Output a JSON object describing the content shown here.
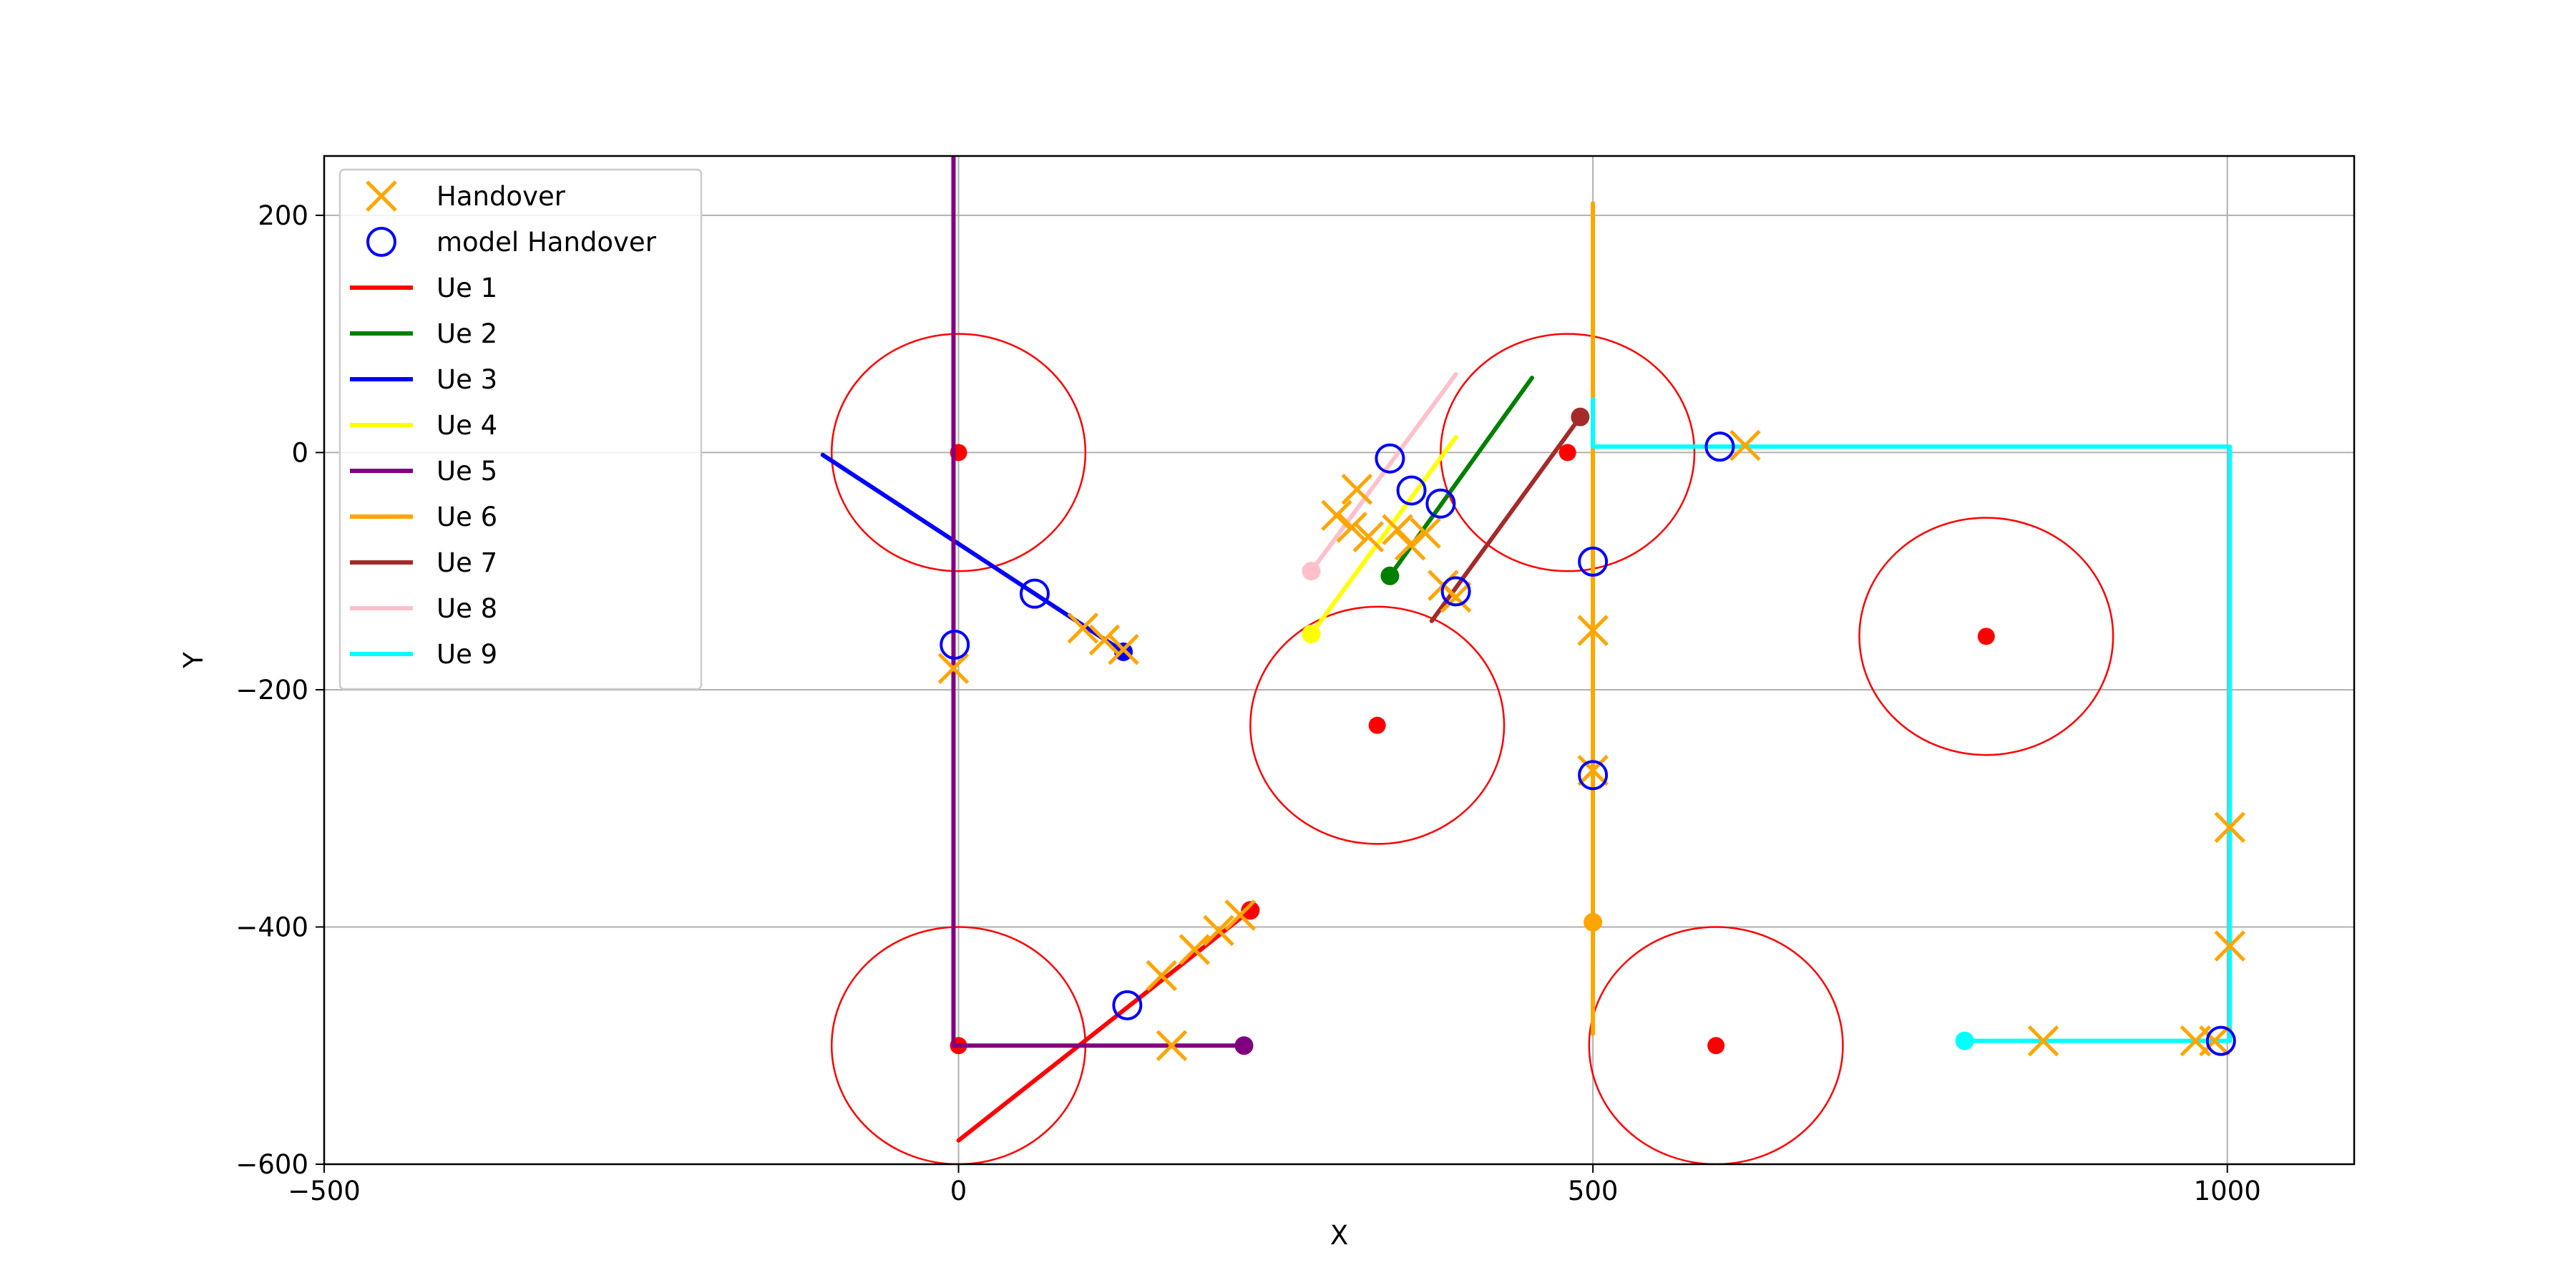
{
  "chart_data": {
    "type": "line",
    "title": "",
    "xlabel": "X",
    "ylabel": "Y",
    "xlim": [
      -500,
      1100
    ],
    "ylim": [
      -600,
      250
    ],
    "xticks": [
      -500,
      0,
      500,
      1000
    ],
    "yticks": [
      -600,
      -400,
      -200,
      0,
      200
    ],
    "xtick_labels": [
      "−500",
      "0",
      "500",
      "1000"
    ],
    "ytick_labels": [
      "−600",
      "−400",
      "−200",
      "0",
      "200"
    ],
    "grid": true,
    "legend_position": "top-left",
    "legend": [
      {
        "label": "Handover",
        "marker": "x",
        "color": "#FFA500"
      },
      {
        "label": "model Handover",
        "marker": "circle",
        "color": "#0000FF"
      },
      {
        "label": "Ue 1",
        "marker": "line",
        "color": "#FF0000"
      },
      {
        "label": "Ue 2",
        "marker": "line",
        "color": "#008000"
      },
      {
        "label": "Ue 3",
        "marker": "line",
        "color": "#0000FF"
      },
      {
        "label": "Ue 4",
        "marker": "line",
        "color": "#FFFF00"
      },
      {
        "label": "Ue 5",
        "marker": "line",
        "color": "#800080"
      },
      {
        "label": "Ue 6",
        "marker": "line",
        "color": "#FFA500"
      },
      {
        "label": "Ue 7",
        "marker": "line",
        "color": "#A52A2A"
      },
      {
        "label": "Ue 8",
        "marker": "line",
        "color": "#FFC0CB"
      },
      {
        "label": "Ue 9",
        "marker": "line",
        "color": "#00FFFF"
      }
    ],
    "base_stations": [
      {
        "x": 0,
        "y": 0,
        "radius": 100
      },
      {
        "x": 480,
        "y": 0,
        "radius": 100
      },
      {
        "x": 330,
        "y": -230,
        "radius": 100
      },
      {
        "x": 810,
        "y": -155,
        "radius": 100
      },
      {
        "x": 0,
        "y": -500,
        "radius": 100
      },
      {
        "x": 597,
        "y": -500,
        "radius": 100
      }
    ],
    "base_station_color": "#FF0000",
    "series": [
      {
        "name": "Ue 1",
        "color": "#FF0000",
        "points": [
          [
            0,
            -580
          ],
          [
            230,
            -386
          ]
        ],
        "start": [
          230,
          -386
        ]
      },
      {
        "name": "Ue 2",
        "color": "#008000",
        "points": [
          [
            340,
            -104
          ],
          [
            452,
            63
          ]
        ],
        "start": [
          340,
          -104
        ]
      },
      {
        "name": "Ue 3",
        "color": "#0000FF",
        "points": [
          [
            -107,
            -2
          ],
          [
            130,
            -168
          ]
        ],
        "start": [
          130,
          -168
        ]
      },
      {
        "name": "Ue 4",
        "color": "#FFFF00",
        "points": [
          [
            278,
            -153
          ],
          [
            392,
            13
          ]
        ],
        "start": [
          278,
          -153
        ]
      },
      {
        "name": "Ue 5",
        "color": "#800080",
        "points": [
          [
            -4,
            255
          ],
          [
            -4,
            -500
          ],
          [
            225,
            -500
          ]
        ],
        "start": [
          225,
          -500
        ]
      },
      {
        "name": "Ue 6",
        "color": "#FFA500",
        "points": [
          [
            500,
            210
          ],
          [
            500,
            -490
          ]
        ],
        "start": [
          500,
          -396
        ]
      },
      {
        "name": "Ue 7",
        "color": "#A52A2A",
        "points": [
          [
            490,
            30
          ],
          [
            373,
            -142
          ]
        ],
        "start": [
          490,
          30
        ]
      },
      {
        "name": "Ue 8",
        "color": "#FFC0CB",
        "points": [
          [
            278,
            -100
          ],
          [
            392,
            66
          ]
        ],
        "start": [
          278,
          -100
        ]
      },
      {
        "name": "Ue 9",
        "color": "#00FFFF",
        "points": [
          [
            500,
            45
          ],
          [
            500,
            5
          ],
          [
            1002,
            5
          ],
          [
            1002,
            -496
          ],
          [
            793,
            -496
          ]
        ],
        "start": [
          793,
          -496
        ]
      }
    ],
    "handover": {
      "color": "#FFA500",
      "points": [
        [
          -4,
          -182
        ],
        [
          98,
          -148
        ],
        [
          115,
          -158
        ],
        [
          130,
          -166
        ],
        [
          168,
          -500
        ],
        [
          160,
          -441
        ],
        [
          186,
          -419
        ],
        [
          205,
          -403
        ],
        [
          222,
          -390
        ],
        [
          314,
          -31
        ],
        [
          298,
          -53
        ],
        [
          310,
          -63
        ],
        [
          323,
          -71
        ],
        [
          346,
          -65
        ],
        [
          356,
          -78
        ],
        [
          368,
          -68
        ],
        [
          382,
          -112
        ],
        [
          392,
          -122
        ],
        [
          500,
          -150
        ],
        [
          500,
          -268
        ],
        [
          620,
          6
        ],
        [
          1002,
          -316
        ],
        [
          1002,
          -416
        ],
        [
          855,
          -496
        ],
        [
          975,
          -496
        ],
        [
          990,
          -496
        ]
      ]
    },
    "model_handover": {
      "color": "#0000FF",
      "points": [
        [
          -3,
          -162
        ],
        [
          60,
          -119
        ],
        [
          133,
          -466
        ],
        [
          340,
          -5
        ],
        [
          357,
          -32
        ],
        [
          380,
          -43
        ],
        [
          392,
          -117
        ],
        [
          500,
          -92
        ],
        [
          500,
          -272
        ],
        [
          600,
          5
        ],
        [
          995,
          -496
        ]
      ]
    }
  }
}
